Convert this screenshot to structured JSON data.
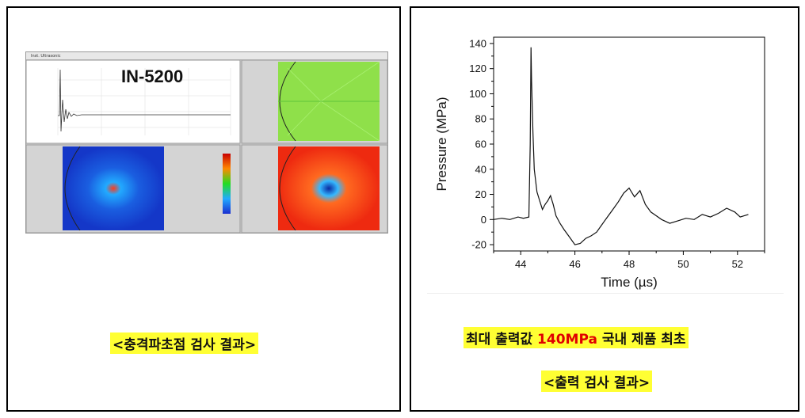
{
  "left": {
    "sim_window_title": "Inst. Ultrasonic",
    "sim_label": "IN-5200",
    "caption": "<충격파초점 검사 결과>"
  },
  "right": {
    "headline_pre": "최대 출력값 ",
    "headline_value": "140MPa",
    "headline_post": " 국내 제품 최초",
    "caption": "<출력 검사 결과>"
  },
  "colors": {
    "highlight": "#ffff33",
    "headline_value": "#e00000",
    "trace": "#111111"
  },
  "chart_data": {
    "type": "line",
    "xlabel": "Time (µs)",
    "ylabel": "Pressure (MPa)",
    "xlim": [
      43,
      53
    ],
    "ylim": [
      -25,
      145
    ],
    "xticks": [
      44,
      46,
      48,
      50,
      52
    ],
    "yticks": [
      -20,
      0,
      20,
      40,
      60,
      80,
      100,
      120,
      140
    ],
    "grid": false,
    "series": [
      {
        "x": [
          43.0,
          43.3,
          43.6,
          43.9,
          44.1,
          44.3,
          44.35,
          44.38,
          44.4,
          44.45,
          44.5,
          44.6,
          44.7,
          44.8,
          44.9,
          45.0,
          45.1,
          45.2,
          45.3,
          45.45,
          45.6,
          45.8,
          46.0,
          46.2,
          46.4,
          46.6,
          46.8,
          47.0,
          47.2,
          47.4,
          47.6,
          47.8,
          48.0,
          48.2,
          48.4,
          48.6,
          48.8,
          49.0,
          49.2,
          49.5,
          49.8,
          50.1,
          50.4,
          50.7,
          51.0,
          51.3,
          51.6,
          51.9,
          52.1,
          52.4
        ],
        "y": [
          0,
          1,
          0,
          2,
          1,
          2,
          60,
          137,
          110,
          70,
          40,
          22,
          15,
          8,
          12,
          15,
          19,
          12,
          3,
          -3,
          -8,
          -14,
          -20,
          -19,
          -15,
          -13,
          -10,
          -4,
          2,
          8,
          14,
          21,
          25,
          18,
          23,
          12,
          6,
          3,
          0,
          -3,
          -1,
          1,
          0,
          4,
          2,
          5,
          9,
          6,
          2,
          4
        ]
      }
    ]
  }
}
